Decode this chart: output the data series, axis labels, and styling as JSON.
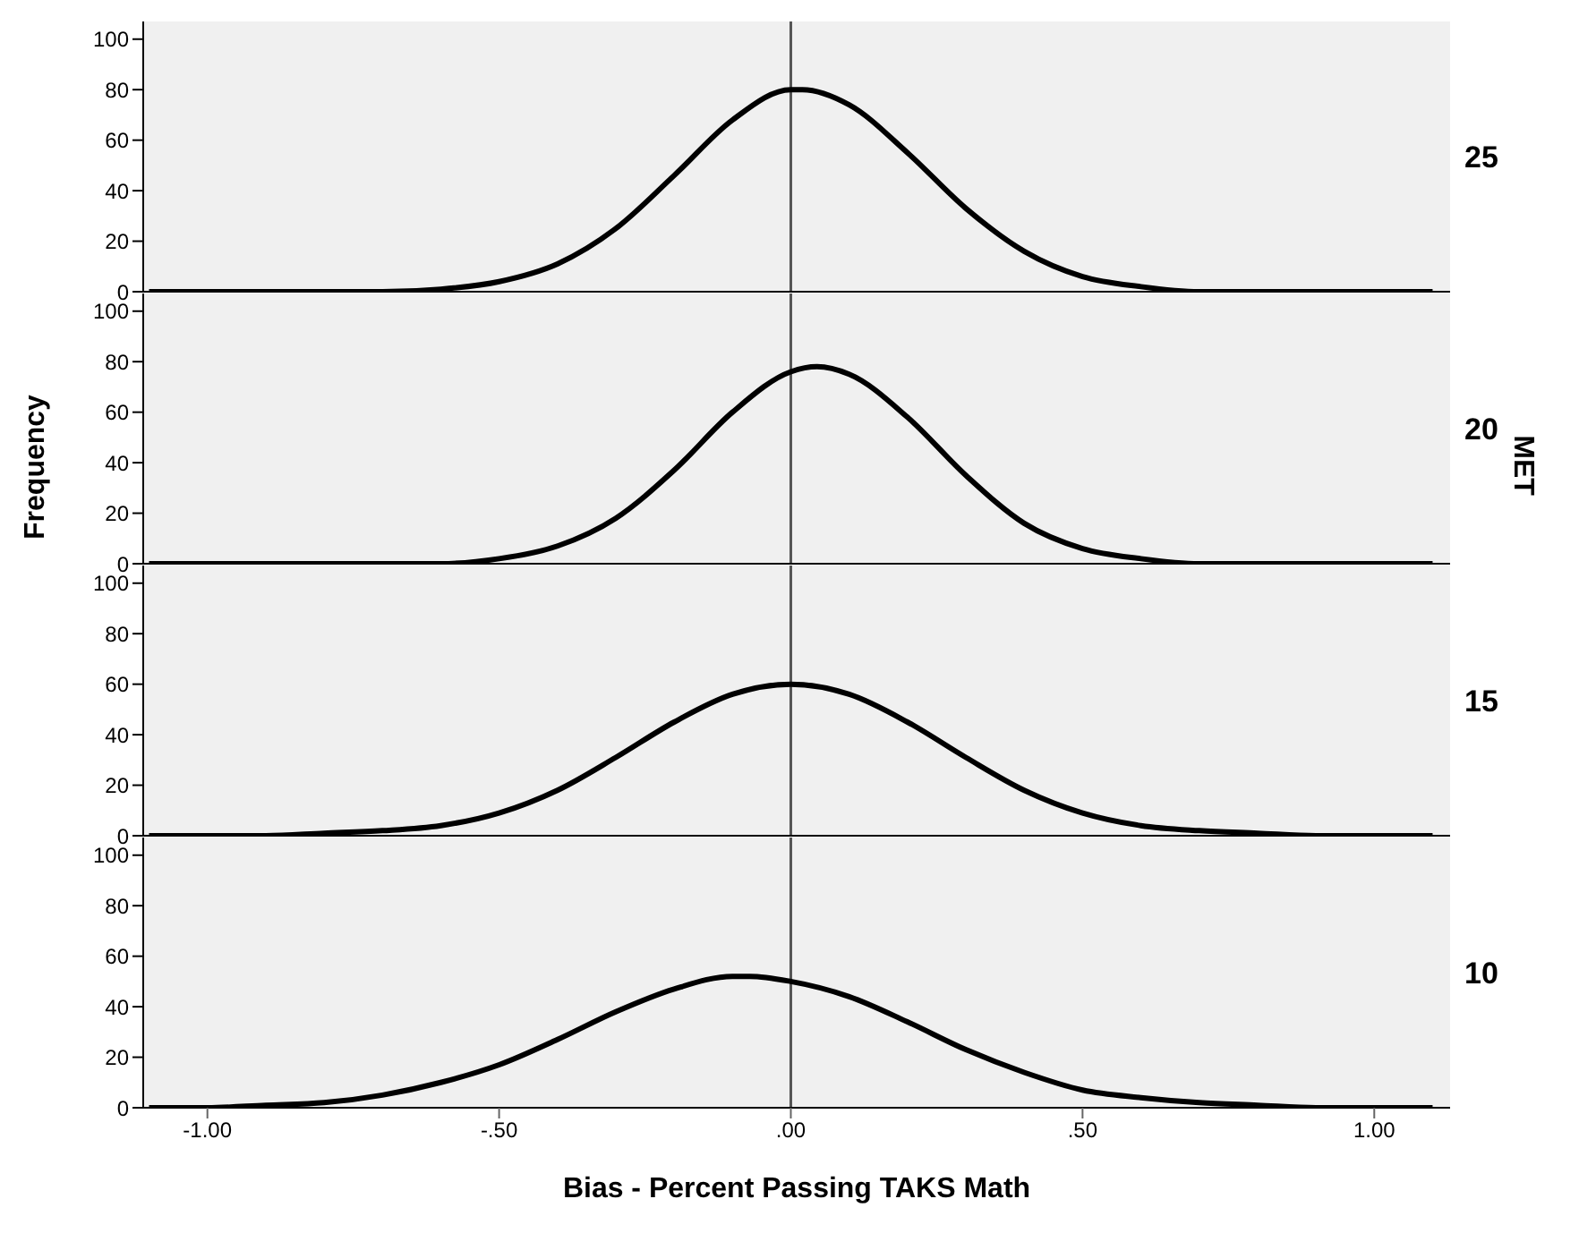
{
  "chart_data": [
    {
      "type": "line",
      "title": "25",
      "xlim": [
        -1.11,
        1.13
      ],
      "ylim": [
        0,
        107
      ],
      "yticks": [
        0,
        20,
        40,
        60,
        80,
        100
      ],
      "tick_labels": "y",
      "ref_lines": [
        {
          "axis": "x",
          "value": 0,
          "color": "#555555"
        }
      ],
      "series": [
        {
          "color": "#000000",
          "x": [
            -1.1,
            -1.0,
            -0.9,
            -0.8,
            -0.7,
            -0.6,
            -0.5,
            -0.4,
            -0.3,
            -0.2,
            -0.1,
            0,
            0.02,
            0.1,
            0.2,
            0.3,
            0.4,
            0.5,
            0.6,
            0.7,
            0.8,
            0.9,
            1.0,
            1.1
          ],
          "values": [
            0,
            0,
            0,
            0,
            0,
            1,
            4,
            11,
            25,
            46,
            68,
            80,
            80,
            74,
            55,
            33,
            16,
            6,
            2,
            0,
            0,
            0,
            0,
            0
          ]
        }
      ]
    },
    {
      "type": "line",
      "title": "20",
      "ylabel": "Frequency",
      "y2label": "MET",
      "xlim": [
        -1.11,
        1.13
      ],
      "ylim": [
        0,
        107
      ],
      "yticks": [
        0,
        20,
        40,
        60,
        80,
        100
      ],
      "tick_labels": "y",
      "ref_lines": [
        {
          "axis": "x",
          "value": 0,
          "color": "#555555"
        }
      ],
      "series": [
        {
          "color": "#000000",
          "x": [
            -1.1,
            -1.0,
            -0.9,
            -0.8,
            -0.7,
            -0.6,
            -0.5,
            -0.4,
            -0.3,
            -0.2,
            -0.1,
            0,
            0.045,
            0.1,
            0.2,
            0.3,
            0.4,
            0.5,
            0.6,
            0.7,
            0.8,
            0.9,
            1.0,
            1.1
          ],
          "values": [
            0,
            0,
            0,
            0,
            0,
            0,
            2,
            7,
            18,
            37,
            60,
            76,
            78,
            75,
            58,
            35,
            16,
            6,
            2,
            0,
            0,
            0,
            0,
            0
          ]
        }
      ]
    },
    {
      "type": "line",
      "title": "15",
      "xlim": [
        -1.11,
        1.13
      ],
      "ylim": [
        0,
        107
      ],
      "yticks": [
        0,
        20,
        40,
        60,
        80,
        100
      ],
      "tick_labels": "y",
      "ref_lines": [
        {
          "axis": "x",
          "value": 0,
          "color": "#555555"
        }
      ],
      "series": [
        {
          "color": "#000000",
          "x": [
            -1.1,
            -1.0,
            -0.9,
            -0.8,
            -0.7,
            -0.6,
            -0.5,
            -0.4,
            -0.3,
            -0.2,
            -0.1,
            0,
            0.1,
            0.2,
            0.3,
            0.4,
            0.5,
            0.6,
            0.7,
            0.8,
            0.9,
            1.0,
            1.1
          ],
          "values": [
            0,
            0,
            0,
            1,
            2,
            4,
            9,
            18,
            31,
            45,
            56,
            60,
            56,
            45,
            31,
            18,
            9,
            4,
            2,
            1,
            0,
            0,
            0
          ]
        }
      ]
    },
    {
      "type": "line",
      "title": "10",
      "xlabel": "Bias - Percent Passing TAKS Math",
      "xlim": [
        -1.11,
        1.13
      ],
      "xticks": [
        {
          "value": -1,
          "label": "-1.00"
        },
        {
          "value": -0.5,
          "label": "-.50"
        },
        {
          "value": 0,
          "label": ".00"
        },
        {
          "value": 0.5,
          "label": ".50"
        },
        {
          "value": 1,
          "label": "1.00"
        }
      ],
      "ylim": [
        0,
        107
      ],
      "yticks": [
        0,
        20,
        40,
        60,
        80,
        100
      ],
      "ref_lines": [
        {
          "axis": "x",
          "value": 0,
          "color": "#555555"
        }
      ],
      "series": [
        {
          "color": "#000000",
          "x": [
            -1.1,
            -1.0,
            -0.9,
            -0.8,
            -0.7,
            -0.6,
            -0.5,
            -0.4,
            -0.3,
            -0.2,
            -0.1,
            -0.07,
            0,
            0.1,
            0.2,
            0.3,
            0.4,
            0.5,
            0.6,
            0.7,
            0.8,
            0.9,
            1.0,
            1.1
          ],
          "values": [
            0,
            0,
            1,
            2,
            5,
            10,
            17,
            27,
            38,
            47,
            52,
            52,
            50,
            44,
            34,
            23,
            14,
            7,
            4,
            2,
            1,
            0,
            0,
            0
          ]
        }
      ]
    }
  ]
}
